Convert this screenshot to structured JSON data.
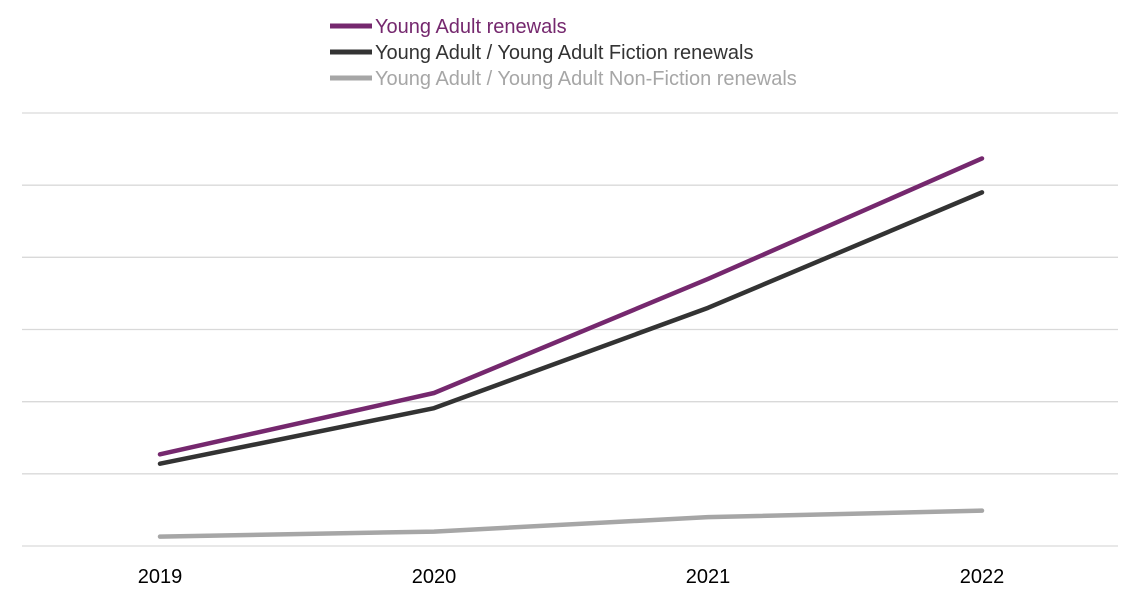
{
  "chart_data": {
    "type": "line",
    "title": "",
    "xlabel": "",
    "ylabel": "",
    "categories": [
      "2019",
      "2020",
      "2021",
      "2022"
    ],
    "ylim": [
      0,
      6
    ],
    "y_ticks_labeled": false,
    "grid": true,
    "legend_position": "top-center",
    "series": [
      {
        "name": "Young Adult renewals",
        "color": "#75286E",
        "values": [
          1.27,
          2.12,
          3.7,
          5.37
        ]
      },
      {
        "name": "Young Adult / Young Adult Fiction renewals",
        "color": "#333333",
        "values": [
          1.14,
          1.91,
          3.3,
          4.9
        ]
      },
      {
        "name": "Young Adult / Young Adult Non-Fiction renewals",
        "color": "#A6A6A6",
        "values": [
          0.13,
          0.2,
          0.4,
          0.49
        ]
      }
    ]
  }
}
